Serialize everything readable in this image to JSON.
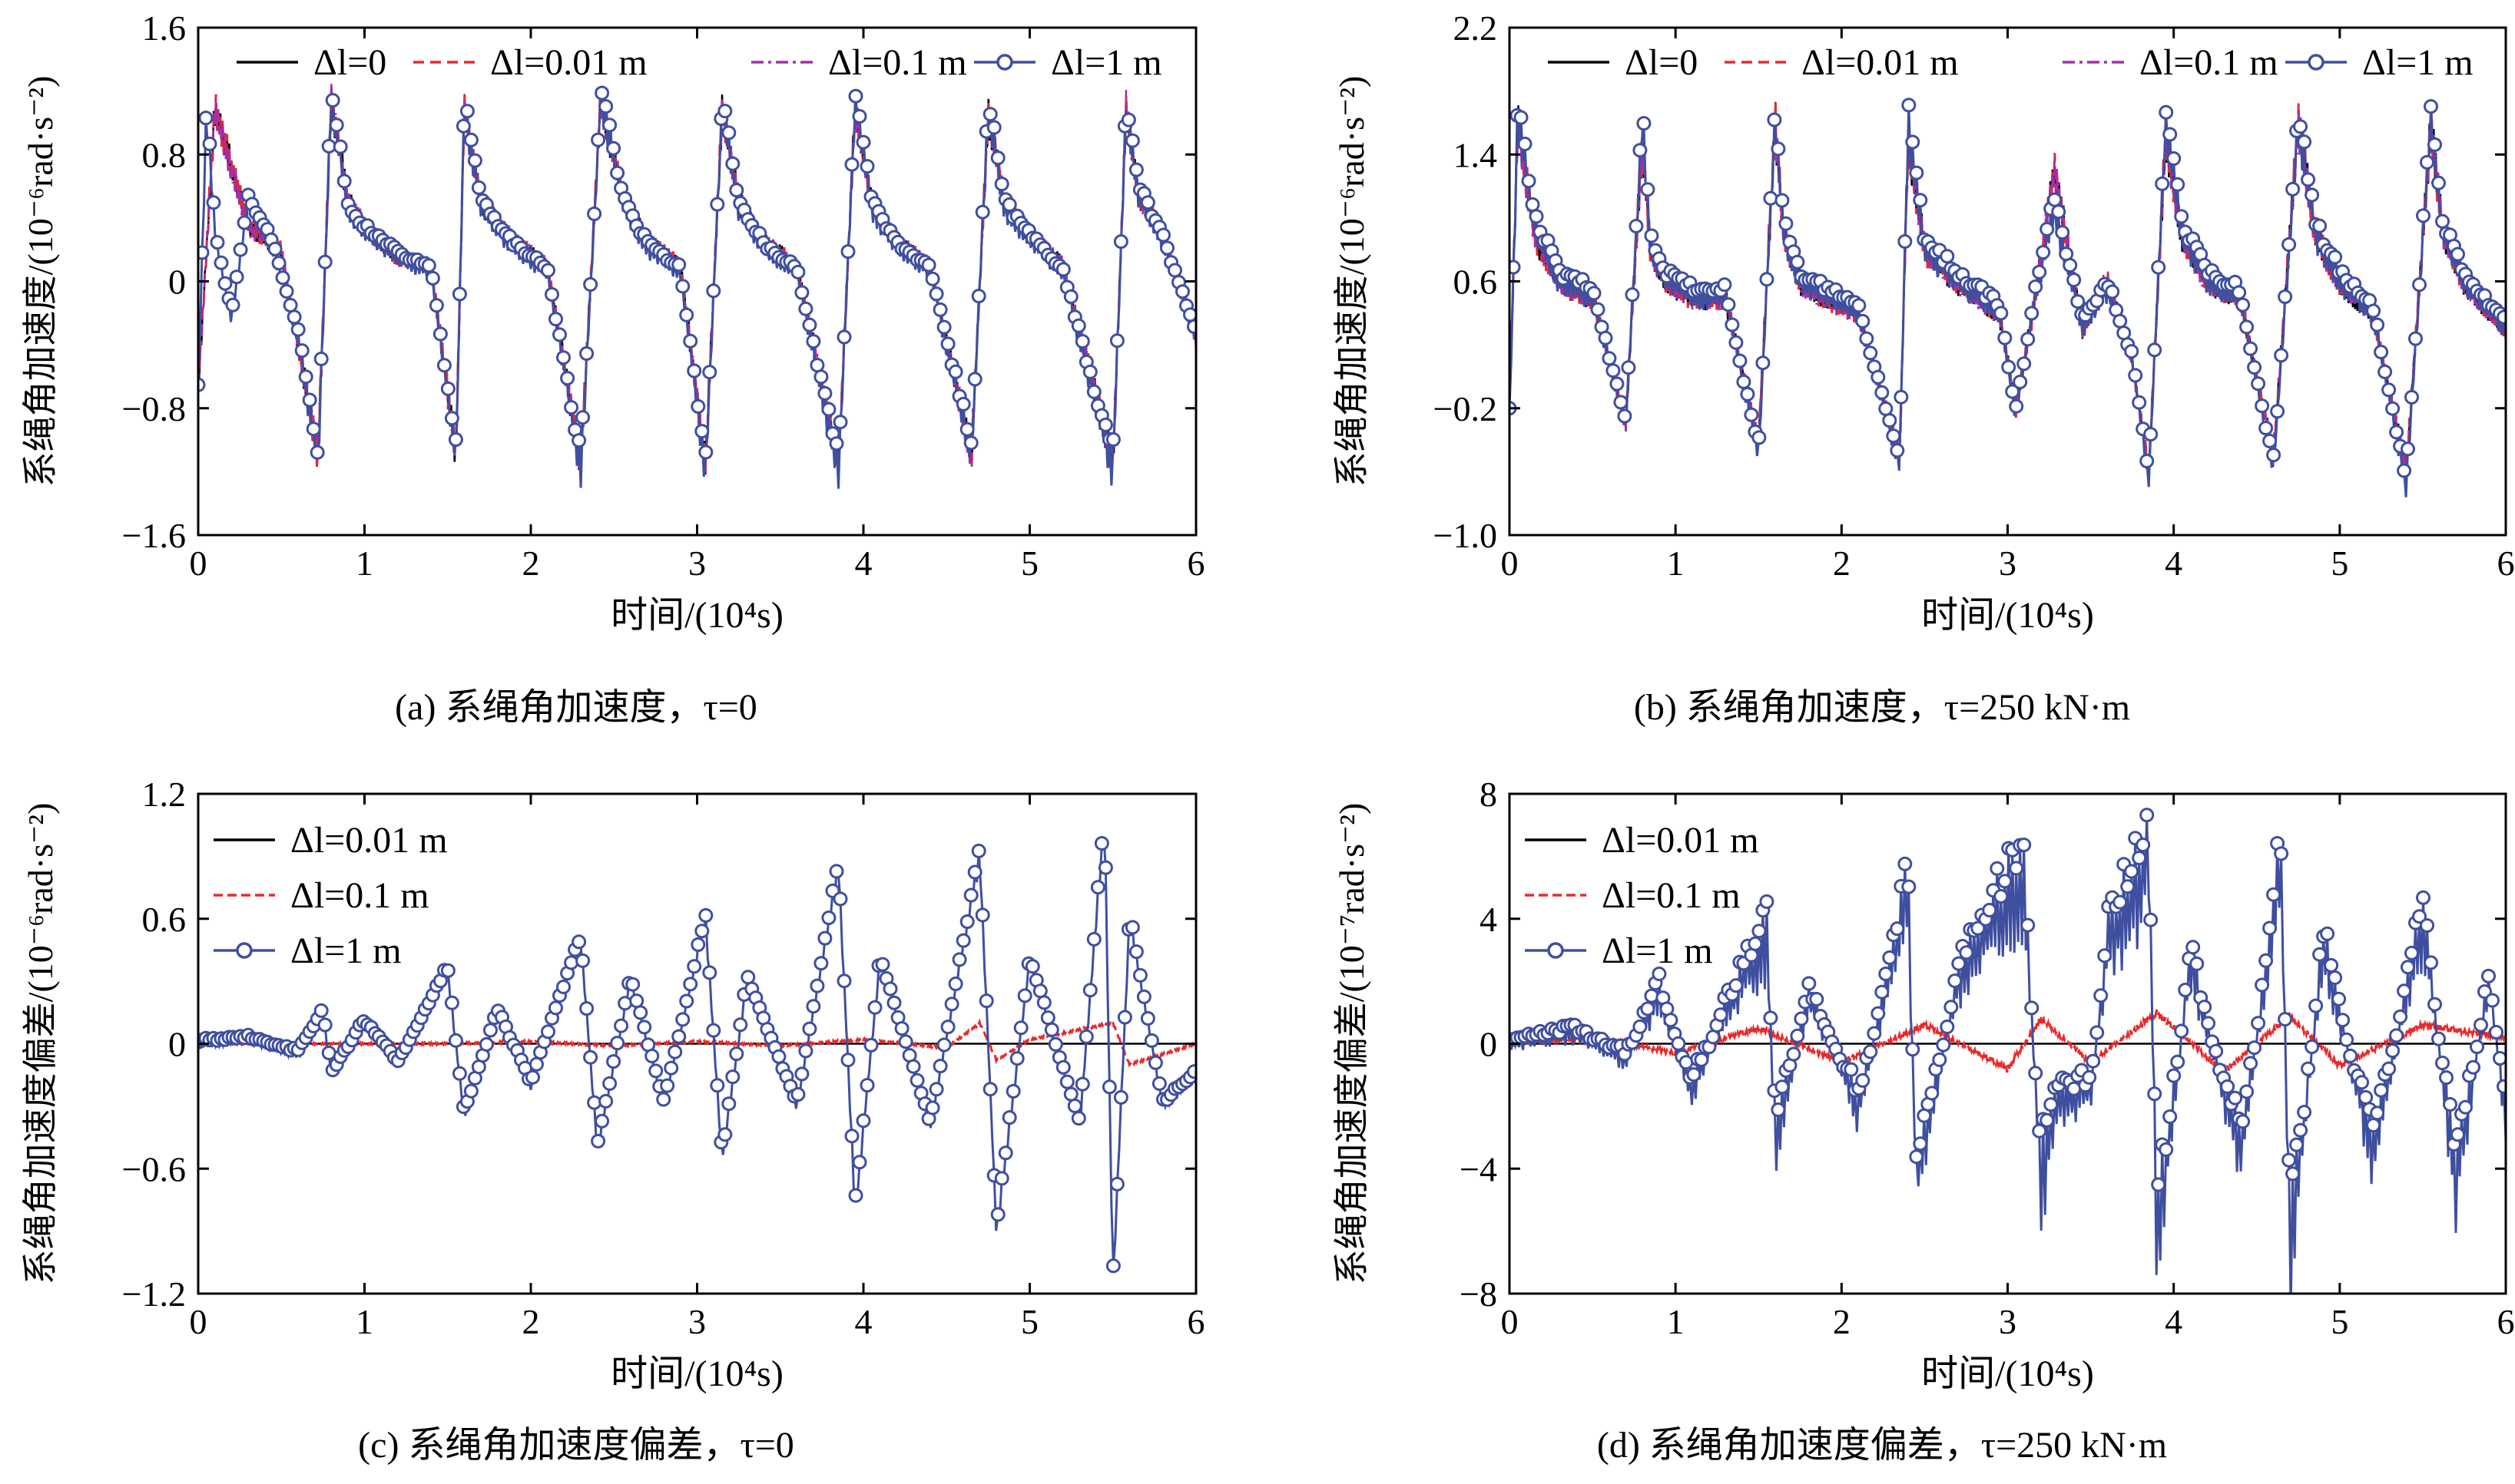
{
  "colors": {
    "series_1": "#000000",
    "series_2": "#e8292b",
    "series_3": "#a22fa8",
    "series_4": "#3f4f9f",
    "axis": "#000000"
  },
  "chart_data": [
    {
      "type": "line",
      "caption": "(a) 系绳角加速度，τ=0",
      "xlabel": "时间/(10⁴s)",
      "ylabel": "系绳角加速度/(10⁻⁶rad·s⁻²)",
      "xlim": [
        0,
        6
      ],
      "ylim": [
        -1.6,
        1.6
      ],
      "xticks": [
        "0",
        "1",
        "2",
        "3",
        "4",
        "5",
        "6"
      ],
      "yticks": [
        "-1.6",
        "-0.8",
        "0",
        "0.8",
        "1.6"
      ],
      "legend": [
        "Δl=0",
        "Δl=0.01 m",
        "Δl=0.1 m",
        "Δl=1 m"
      ],
      "legend_position": "top",
      "marker_series": "Δl=1 m",
      "series": [
        {
          "name": "Δl=0",
          "x": [
            0,
            0.1,
            0.3,
            0.5,
            0.72,
            0.8,
            0.9,
            1.0,
            1.2,
            1.4,
            1.55,
            1.6,
            1.7,
            1.9,
            2.1,
            2.3,
            2.42,
            2.55,
            2.7,
            2.9,
            3.05,
            3.15,
            3.25,
            3.4,
            3.6,
            3.85,
            3.95,
            4.05,
            4.2,
            4.4,
            4.65,
            4.75,
            4.85,
            5.0,
            5.2,
            5.5,
            5.58,
            5.65,
            5.8,
            6.0
          ],
          "y": [
            -0.7,
            1.1,
            0.35,
            0.2,
            -1.1,
            1.15,
            0.5,
            0.35,
            0.15,
            0.1,
            -1.1,
            1.1,
            0.5,
            0.25,
            0.1,
            -1.15,
            1.15,
            0.55,
            0.25,
            0.1,
            -1.15,
            1.1,
            0.5,
            0.25,
            0.1,
            -1.15,
            1.1,
            0.5,
            0.25,
            0.1,
            -1.1,
            1.05,
            0.5,
            0.3,
            0.1,
            -1.15,
            1.1,
            0.55,
            0.3,
            -0.35
          ]
        },
        {
          "name": "Δl=0.01 m",
          "x": [
            0,
            0.1,
            0.3,
            0.5,
            0.72,
            0.8,
            0.9,
            1.0,
            1.2,
            1.4,
            1.55,
            1.6,
            1.7,
            1.9,
            2.1,
            2.3,
            2.42,
            2.55,
            2.7,
            2.9,
            3.05,
            3.15,
            3.25,
            3.4,
            3.6,
            3.85,
            3.95,
            4.05,
            4.2,
            4.4,
            4.65,
            4.75,
            4.85,
            5.0,
            5.2,
            5.5,
            5.58,
            5.65,
            5.8,
            6.0
          ],
          "y": [
            -0.7,
            1.1,
            0.35,
            0.2,
            -1.1,
            1.15,
            0.5,
            0.35,
            0.15,
            0.1,
            -1.1,
            1.1,
            0.5,
            0.25,
            0.1,
            -1.15,
            1.15,
            0.55,
            0.25,
            0.1,
            -1.15,
            1.1,
            0.5,
            0.25,
            0.1,
            -1.15,
            1.1,
            0.5,
            0.25,
            0.1,
            -1.1,
            1.05,
            0.5,
            0.3,
            0.1,
            -1.15,
            1.1,
            0.55,
            0.3,
            -0.35
          ]
        },
        {
          "name": "Δl=0.1 m",
          "x": [
            0,
            0.1,
            0.3,
            0.5,
            0.72,
            0.8,
            0.9,
            1.0,
            1.2,
            1.4,
            1.55,
            1.6,
            1.7,
            1.9,
            2.1,
            2.3,
            2.42,
            2.55,
            2.7,
            2.9,
            3.05,
            3.15,
            3.25,
            3.4,
            3.6,
            3.85,
            3.95,
            4.05,
            4.2,
            4.4,
            4.65,
            4.75,
            4.85,
            5.0,
            5.2,
            5.5,
            5.58,
            5.65,
            5.8,
            6.0
          ],
          "y": [
            -0.7,
            1.1,
            0.35,
            0.2,
            -1.1,
            1.15,
            0.5,
            0.35,
            0.15,
            0.1,
            -1.1,
            1.1,
            0.5,
            0.25,
            0.1,
            -1.15,
            1.15,
            0.55,
            0.25,
            0.1,
            -1.15,
            1.1,
            0.5,
            0.25,
            0.1,
            -1.15,
            1.1,
            0.5,
            0.25,
            0.1,
            -1.1,
            1.05,
            0.5,
            0.3,
            0.1,
            -1.15,
            1.1,
            0.55,
            0.3,
            -0.35
          ]
        },
        {
          "name": "Δl=1 m",
          "x": [
            0,
            0.05,
            0.1,
            0.2,
            0.3,
            0.45,
            0.6,
            0.72,
            0.8,
            0.9,
            1.0,
            1.2,
            1.4,
            1.55,
            1.6,
            1.7,
            1.9,
            2.1,
            2.3,
            2.42,
            2.55,
            2.7,
            2.9,
            3.05,
            3.15,
            3.25,
            3.4,
            3.6,
            3.85,
            3.95,
            4.05,
            4.2,
            4.4,
            4.65,
            4.75,
            4.85,
            5.0,
            5.2,
            5.5,
            5.58,
            5.65,
            5.8,
            6.0
          ],
          "y": [
            -0.7,
            1.1,
            0.3,
            -0.25,
            0.5,
            0.2,
            -0.35,
            -1.15,
            1.15,
            0.45,
            0.3,
            0.15,
            0.05,
            -1.1,
            1.1,
            0.45,
            0.2,
            0.05,
            -1.2,
            1.15,
            0.5,
            0.2,
            0.05,
            -1.2,
            1.1,
            0.45,
            0.2,
            0.05,
            -1.2,
            1.15,
            0.45,
            0.2,
            0.05,
            -1.1,
            1.1,
            0.45,
            0.25,
            0.05,
            -1.2,
            1.1,
            0.55,
            0.25,
            -0.35
          ]
        }
      ]
    },
    {
      "type": "line",
      "caption": "(b) 系绳角加速度，τ=250 kN·m",
      "xlabel": "时间/(10⁴s)",
      "ylabel": "系绳角加速度/(10⁻⁶rad·s⁻²)",
      "xlim": [
        0,
        6
      ],
      "ylim": [
        -1.0,
        2.2
      ],
      "xticks": [
        "0",
        "1",
        "2",
        "3",
        "4",
        "5",
        "6"
      ],
      "yticks": [
        "-1.0",
        "-0.2",
        "0.6",
        "1.4",
        "2.2"
      ],
      "legend": [
        "Δl=0",
        "Δl=0.01 m",
        "Δl=0.1 m",
        "Δl=1 m"
      ],
      "legend_position": "top",
      "marker_series": "Δl=1 m",
      "series": [
        {
          "name": "Δl=0",
          "x": [
            0,
            0.05,
            0.15,
            0.3,
            0.5,
            0.7,
            0.8,
            0.85,
            0.95,
            1.1,
            1.3,
            1.5,
            1.6,
            1.65,
            1.75,
            1.9,
            2.1,
            2.35,
            2.4,
            2.5,
            2.7,
            2.95,
            3.05,
            3.15,
            3.28,
            3.45,
            3.6,
            3.75,
            3.85,
            3.95,
            4.05,
            4.2,
            4.4,
            4.6,
            4.75,
            4.85,
            5.0,
            5.2,
            5.4,
            5.55,
            5.62,
            5.75,
            6.0
          ],
          "y": [
            -0.2,
            1.6,
            0.9,
            0.6,
            0.5,
            -0.3,
            1.5,
            0.8,
            0.6,
            0.5,
            0.5,
            -0.4,
            1.6,
            0.9,
            0.6,
            0.5,
            0.4,
            -0.5,
            1.5,
            0.8,
            0.6,
            0.4,
            -0.2,
            0.4,
            1.3,
            0.3,
            0.6,
            0.1,
            -0.6,
            1.5,
            0.9,
            0.6,
            0.5,
            -0.5,
            1.6,
            0.9,
            0.6,
            0.4,
            -0.6,
            1.6,
            0.9,
            0.6,
            0.3
          ]
        },
        {
          "name": "Δl=0.01 m",
          "x": [
            0,
            0.05,
            0.15,
            0.3,
            0.5,
            0.7,
            0.8,
            0.85,
            0.95,
            1.1,
            1.3,
            1.5,
            1.6,
            1.65,
            1.75,
            1.9,
            2.1,
            2.35,
            2.4,
            2.5,
            2.7,
            2.95,
            3.05,
            3.15,
            3.28,
            3.45,
            3.6,
            3.75,
            3.85,
            3.95,
            4.05,
            4.2,
            4.4,
            4.6,
            4.75,
            4.85,
            5.0,
            5.2,
            5.4,
            5.55,
            5.62,
            5.75,
            6.0
          ],
          "y": [
            -0.2,
            1.6,
            0.9,
            0.6,
            0.5,
            -0.3,
            1.5,
            0.8,
            0.6,
            0.5,
            0.5,
            -0.4,
            1.6,
            0.9,
            0.6,
            0.5,
            0.4,
            -0.5,
            1.5,
            0.8,
            0.6,
            0.4,
            -0.2,
            0.4,
            1.3,
            0.3,
            0.6,
            0.1,
            -0.6,
            1.5,
            0.9,
            0.6,
            0.5,
            -0.5,
            1.6,
            0.9,
            0.6,
            0.4,
            -0.6,
            1.6,
            0.9,
            0.6,
            0.3
          ]
        },
        {
          "name": "Δl=0.1 m",
          "x": [
            0,
            0.05,
            0.15,
            0.3,
            0.5,
            0.7,
            0.8,
            0.85,
            0.95,
            1.1,
            1.3,
            1.5,
            1.6,
            1.65,
            1.75,
            1.9,
            2.1,
            2.35,
            2.4,
            2.5,
            2.7,
            2.95,
            3.05,
            3.15,
            3.28,
            3.45,
            3.6,
            3.75,
            3.85,
            3.95,
            4.05,
            4.2,
            4.4,
            4.6,
            4.75,
            4.85,
            5.0,
            5.2,
            5.4,
            5.55,
            5.62,
            5.75,
            6.0
          ],
          "y": [
            -0.2,
            1.6,
            0.9,
            0.6,
            0.5,
            -0.3,
            1.5,
            0.8,
            0.6,
            0.5,
            0.5,
            -0.4,
            1.6,
            0.9,
            0.6,
            0.5,
            0.4,
            -0.5,
            1.5,
            0.8,
            0.6,
            0.4,
            -0.2,
            0.4,
            1.3,
            0.3,
            0.6,
            0.1,
            -0.6,
            1.5,
            0.9,
            0.6,
            0.5,
            -0.5,
            1.6,
            0.9,
            0.6,
            0.4,
            -0.6,
            1.6,
            0.9,
            0.6,
            0.3
          ]
        },
        {
          "name": "Δl=1 m",
          "x": [
            0,
            0.05,
            0.15,
            0.3,
            0.5,
            0.7,
            0.8,
            0.85,
            0.95,
            1.1,
            1.3,
            1.5,
            1.6,
            1.65,
            1.75,
            1.9,
            2.1,
            2.35,
            2.4,
            2.5,
            2.7,
            2.95,
            3.05,
            3.15,
            3.28,
            3.45,
            3.6,
            3.75,
            3.85,
            3.95,
            4.05,
            4.2,
            4.4,
            4.6,
            4.75,
            4.85,
            5.0,
            5.2,
            5.4,
            5.55,
            5.62,
            5.75,
            6.0
          ],
          "y": [
            -0.25,
            1.65,
            0.95,
            0.6,
            0.5,
            -0.3,
            1.6,
            0.8,
            0.6,
            0.5,
            0.5,
            -0.5,
            1.65,
            0.9,
            0.6,
            0.5,
            0.4,
            -0.55,
            1.6,
            0.8,
            0.6,
            0.4,
            -0.25,
            0.4,
            1.05,
            0.3,
            0.55,
            0.1,
            -0.65,
            1.6,
            0.9,
            0.6,
            0.5,
            -0.6,
            1.6,
            0.9,
            0.6,
            0.4,
            -0.7,
            1.65,
            0.9,
            0.6,
            0.3
          ]
        }
      ]
    },
    {
      "type": "line",
      "caption": "(c) 系绳角加速度偏差，τ=0",
      "xlabel": "时间/(10⁴s)",
      "ylabel": "系绳角加速度偏差/(10⁻⁶rad·s⁻²)",
      "xlim": [
        0,
        6
      ],
      "ylim": [
        -1.2,
        1.2
      ],
      "xticks": [
        "0",
        "1",
        "2",
        "3",
        "4",
        "5",
        "6"
      ],
      "yticks": [
        "-1.2",
        "-0.6",
        "0",
        "0.6",
        "1.2"
      ],
      "legend": [
        "Δl=0.01 m",
        "Δl=0.1 m",
        "Δl=1 m"
      ],
      "legend_position": "top-left",
      "marker_series": "Δl=1 m",
      "series": [
        {
          "name": "Δl=0.01 m",
          "x": [
            0,
            1,
            2,
            3,
            4,
            5,
            6
          ],
          "y": [
            0,
            0,
            0,
            0,
            0,
            0,
            0
          ]
        },
        {
          "name": "Δl=0.1 m",
          "x": [
            0,
            0.5,
            1,
            1.5,
            2,
            2.5,
            3,
            3.5,
            4,
            4.5,
            4.7,
            4.8,
            5,
            5.5,
            5.6,
            6
          ],
          "y": [
            0,
            0,
            0,
            0,
            0.01,
            -0.01,
            0.01,
            -0.01,
            0.02,
            -0.02,
            0.1,
            -0.08,
            0.02,
            0.1,
            -0.1,
            0
          ]
        },
        {
          "name": "Δl=1 m",
          "x": [
            0,
            0.3,
            0.6,
            0.75,
            0.8,
            1.0,
            1.2,
            1.5,
            1.6,
            1.8,
            2.0,
            2.3,
            2.4,
            2.6,
            2.8,
            3.05,
            3.15,
            3.3,
            3.6,
            3.85,
            3.95,
            4.1,
            4.4,
            4.7,
            4.8,
            5.0,
            5.3,
            5.45,
            5.5,
            5.6,
            5.8,
            6.0
          ],
          "y": [
            0,
            0.02,
            -0.05,
            0.15,
            -0.15,
            0.1,
            -0.1,
            0.35,
            -0.35,
            0.15,
            -0.2,
            0.5,
            -0.5,
            0.3,
            -0.3,
            0.6,
            -0.55,
            0.3,
            -0.3,
            0.85,
            -0.8,
            0.4,
            -0.4,
            0.9,
            -0.9,
            0.4,
            -0.4,
            1.1,
            -1.15,
            0.6,
            -0.3,
            -0.15
          ]
        }
      ]
    },
    {
      "type": "line",
      "caption": "(d) 系绳角加速度偏差，τ=250 kN·m",
      "xlabel": "时间/(10⁴s)",
      "ylabel": "系绳角加速度偏差/(10⁻⁷rad·s⁻²)",
      "xlim": [
        0,
        6
      ],
      "ylim": [
        -8,
        8
      ],
      "xticks": [
        "0",
        "1",
        "2",
        "3",
        "4",
        "5",
        "6"
      ],
      "yticks": [
        "-8",
        "-4",
        "0",
        "4",
        "8"
      ],
      "legend": [
        "Δl=0.01 m",
        "Δl=0.1 m",
        "Δl=1 m"
      ],
      "legend_position": "top-left",
      "marker_series": "Δl=1 m",
      "series": [
        {
          "name": "Δl=0.01 m",
          "x": [
            0,
            1,
            2,
            3,
            4,
            5,
            6
          ],
          "y": [
            0,
            0,
            0,
            0,
            0,
            0,
            0
          ]
        },
        {
          "name": "Δl=0.1 m",
          "x": [
            0,
            0.5,
            1,
            1.5,
            2,
            2.5,
            3,
            3.2,
            3.5,
            3.9,
            4.3,
            4.7,
            5,
            5.5,
            6
          ],
          "y": [
            0,
            0.2,
            -0.3,
            0.5,
            -0.6,
            0.6,
            -0.8,
            0.8,
            -0.6,
            1.0,
            -0.9,
            0.9,
            -0.7,
            0.6,
            0.2
          ]
        },
        {
          "name": "Δl=1 m",
          "x": [
            0,
            0.4,
            0.7,
            0.9,
            1.1,
            1.3,
            1.55,
            1.6,
            1.8,
            2.1,
            2.4,
            2.45,
            2.7,
            3.1,
            3.2,
            3.3,
            3.5,
            3.6,
            3.85,
            3.9,
            4.1,
            4.4,
            4.65,
            4.7,
            4.9,
            5.2,
            5.5,
            5.7,
            5.9,
            6.0
          ],
          "y": [
            0,
            0.3,
            -0.5,
            1.5,
            -1.5,
            1.0,
            3.2,
            -3.0,
            1.5,
            -2.0,
            4.5,
            -4.3,
            2.0,
            5.3,
            -4.5,
            -2.0,
            -1.5,
            3.0,
            5.8,
            -6.3,
            2.5,
            -3.5,
            5.5,
            -6.8,
            3.0,
            -3.5,
            4.0,
            -4.5,
            2.0,
            -2.4
          ]
        }
      ]
    }
  ]
}
